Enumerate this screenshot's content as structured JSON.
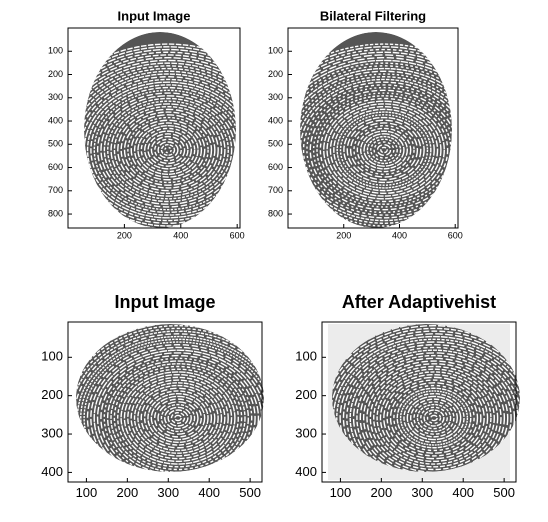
{
  "panels": [
    {
      "title": "Input Image",
      "xlim": [
        0,
        610
      ],
      "ylim": [
        0,
        860
      ],
      "xticks": [
        200,
        400,
        600
      ],
      "yticks": [
        100,
        200,
        300,
        400,
        500,
        600,
        700,
        800
      ]
    },
    {
      "title": "Bilateral Filtering",
      "xlim": [
        0,
        610
      ],
      "ylim": [
        0,
        860
      ],
      "xticks": [
        200,
        400,
        600
      ],
      "yticks": [
        100,
        200,
        300,
        400,
        500,
        600,
        700,
        800
      ]
    },
    {
      "title": "Input Image",
      "xlim": [
        55,
        529
      ],
      "ylim": [
        8,
        425
      ],
      "xticks": [
        100,
        200,
        300,
        400,
        500
      ],
      "yticks": [
        100,
        200,
        300,
        400
      ]
    },
    {
      "title": "After Adaptivehist",
      "xlim": [
        55,
        529
      ],
      "ylim": [
        8,
        425
      ],
      "xticks": [
        100,
        200,
        300,
        400,
        500
      ],
      "yticks": [
        100,
        200,
        300,
        400
      ]
    }
  ]
}
